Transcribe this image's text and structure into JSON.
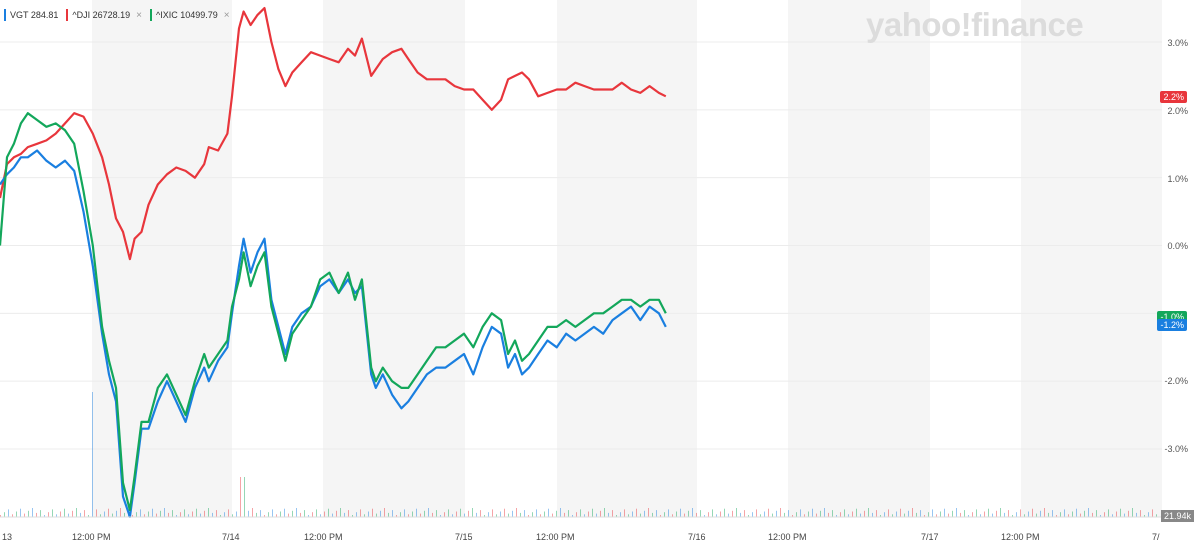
{
  "legend": [
    {
      "label": "VGT 284.81",
      "color": "#1a7fe0",
      "close": "×"
    },
    {
      "label": "^DJI 26728.19",
      "color": "#e8363c",
      "close": "×"
    },
    {
      "label": "^IXIC 10499.79",
      "color": "#13a75b",
      "close": "×"
    }
  ],
  "logo": "yahoo!finance",
  "badges": {
    "dji": "2.2%",
    "ixic": "-1.0%",
    "vgt": "-1.2%",
    "volume": "21.94k"
  },
  "chart_data": {
    "type": "line",
    "ylabel": "",
    "yticks": [
      "3.0%",
      "2.0%",
      "1.0%",
      "0.0%",
      "-1.0%",
      "-2.0%",
      "-3.0%"
    ],
    "ylim": [
      -4.0,
      3.6
    ],
    "xticks": [
      "13",
      "12:00 PM",
      "7/14",
      "12:00 PM",
      "7/15",
      "12:00 PM",
      "7/16",
      "12:00 PM",
      "7/17",
      "12:00 PM",
      "7/"
    ],
    "x_span_days": [
      13,
      18
    ],
    "series": [
      {
        "name": "^DJI",
        "color": "#e8363c",
        "points": [
          [
            13.0,
            0.7
          ],
          [
            13.03,
            1.2
          ],
          [
            13.06,
            1.3
          ],
          [
            13.09,
            1.35
          ],
          [
            13.12,
            1.45
          ],
          [
            13.16,
            1.5
          ],
          [
            13.2,
            1.55
          ],
          [
            13.24,
            1.65
          ],
          [
            13.28,
            1.8
          ],
          [
            13.32,
            1.95
          ],
          [
            13.36,
            1.9
          ],
          [
            13.4,
            1.65
          ],
          [
            13.44,
            1.3
          ],
          [
            13.47,
            0.9
          ],
          [
            13.5,
            0.4
          ],
          [
            13.53,
            0.2
          ],
          [
            13.56,
            -0.2
          ],
          [
            13.58,
            0.1
          ],
          [
            13.61,
            0.2
          ],
          [
            13.64,
            0.6
          ],
          [
            13.68,
            0.9
          ],
          [
            13.72,
            1.05
          ],
          [
            13.76,
            1.15
          ],
          [
            13.8,
            1.1
          ],
          [
            13.84,
            1.0
          ],
          [
            13.88,
            1.2
          ],
          [
            13.9,
            1.45
          ],
          [
            13.94,
            1.4
          ],
          [
            13.98,
            1.65
          ],
          [
            14.0,
            2.2
          ],
          [
            14.03,
            3.2
          ],
          [
            14.05,
            3.45
          ],
          [
            14.08,
            3.25
          ],
          [
            14.11,
            3.4
          ],
          [
            14.14,
            3.5
          ],
          [
            14.17,
            3.0
          ],
          [
            14.2,
            2.6
          ],
          [
            14.23,
            2.35
          ],
          [
            14.26,
            2.55
          ],
          [
            14.3,
            2.7
          ],
          [
            14.34,
            2.85
          ],
          [
            14.38,
            2.8
          ],
          [
            14.42,
            2.75
          ],
          [
            14.46,
            2.7
          ],
          [
            14.5,
            2.9
          ],
          [
            14.53,
            2.8
          ],
          [
            14.56,
            3.05
          ],
          [
            14.6,
            2.5
          ],
          [
            14.62,
            2.6
          ],
          [
            14.65,
            2.75
          ],
          [
            14.69,
            2.85
          ],
          [
            14.73,
            2.9
          ],
          [
            14.76,
            2.75
          ],
          [
            14.8,
            2.55
          ],
          [
            14.84,
            2.45
          ],
          [
            14.88,
            2.45
          ],
          [
            14.92,
            2.45
          ],
          [
            14.96,
            2.35
          ],
          [
            15.0,
            2.3
          ],
          [
            15.04,
            2.3
          ],
          [
            15.08,
            2.15
          ],
          [
            15.12,
            2.0
          ],
          [
            15.16,
            2.15
          ],
          [
            15.19,
            2.45
          ],
          [
            15.22,
            2.5
          ],
          [
            15.25,
            2.55
          ],
          [
            15.28,
            2.45
          ],
          [
            15.32,
            2.2
          ],
          [
            15.36,
            2.25
          ],
          [
            15.4,
            2.3
          ],
          [
            15.44,
            2.3
          ],
          [
            15.48,
            2.4
          ],
          [
            15.52,
            2.35
          ],
          [
            15.56,
            2.3
          ],
          [
            15.6,
            2.3
          ],
          [
            15.64,
            2.3
          ],
          [
            15.68,
            2.4
          ],
          [
            15.72,
            2.3
          ],
          [
            15.76,
            2.25
          ],
          [
            15.8,
            2.35
          ],
          [
            15.84,
            2.25
          ],
          [
            15.87,
            2.2
          ]
        ]
      },
      {
        "name": "VGT",
        "color": "#1a7fe0",
        "points": [
          [
            13.0,
            0.9
          ],
          [
            13.03,
            1.05
          ],
          [
            13.06,
            1.15
          ],
          [
            13.09,
            1.3
          ],
          [
            13.12,
            1.3
          ],
          [
            13.16,
            1.4
          ],
          [
            13.2,
            1.25
          ],
          [
            13.24,
            1.15
          ],
          [
            13.28,
            1.25
          ],
          [
            13.32,
            1.1
          ],
          [
            13.36,
            0.5
          ],
          [
            13.4,
            -0.3
          ],
          [
            13.44,
            -1.3
          ],
          [
            13.47,
            -1.9
          ],
          [
            13.5,
            -2.3
          ],
          [
            13.53,
            -3.7
          ],
          [
            13.56,
            -4.0
          ],
          [
            13.58,
            -3.5
          ],
          [
            13.61,
            -2.7
          ],
          [
            13.64,
            -2.7
          ],
          [
            13.68,
            -2.3
          ],
          [
            13.72,
            -2.0
          ],
          [
            13.76,
            -2.3
          ],
          [
            13.8,
            -2.6
          ],
          [
            13.84,
            -2.1
          ],
          [
            13.88,
            -1.8
          ],
          [
            13.9,
            -2.0
          ],
          [
            13.94,
            -1.7
          ],
          [
            13.98,
            -1.5
          ],
          [
            14.0,
            -1.0
          ],
          [
            14.03,
            -0.3
          ],
          [
            14.05,
            0.1
          ],
          [
            14.08,
            -0.4
          ],
          [
            14.11,
            -0.1
          ],
          [
            14.14,
            0.1
          ],
          [
            14.17,
            -0.8
          ],
          [
            14.2,
            -1.2
          ],
          [
            14.23,
            -1.6
          ],
          [
            14.26,
            -1.2
          ],
          [
            14.3,
            -1.0
          ],
          [
            14.34,
            -0.9
          ],
          [
            14.38,
            -0.6
          ],
          [
            14.42,
            -0.5
          ],
          [
            14.46,
            -0.7
          ],
          [
            14.5,
            -0.5
          ],
          [
            14.53,
            -0.7
          ],
          [
            14.56,
            -0.6
          ],
          [
            14.6,
            -1.9
          ],
          [
            14.62,
            -2.1
          ],
          [
            14.65,
            -1.9
          ],
          [
            14.69,
            -2.2
          ],
          [
            14.73,
            -2.4
          ],
          [
            14.76,
            -2.3
          ],
          [
            14.8,
            -2.1
          ],
          [
            14.84,
            -1.9
          ],
          [
            14.88,
            -1.8
          ],
          [
            14.92,
            -1.8
          ],
          [
            14.96,
            -1.7
          ],
          [
            15.0,
            -1.6
          ],
          [
            15.04,
            -1.9
          ],
          [
            15.08,
            -1.5
          ],
          [
            15.12,
            -1.2
          ],
          [
            15.16,
            -1.3
          ],
          [
            15.19,
            -1.8
          ],
          [
            15.22,
            -1.6
          ],
          [
            15.25,
            -1.9
          ],
          [
            15.28,
            -1.8
          ],
          [
            15.32,
            -1.6
          ],
          [
            15.36,
            -1.4
          ],
          [
            15.4,
            -1.5
          ],
          [
            15.44,
            -1.3
          ],
          [
            15.48,
            -1.4
          ],
          [
            15.52,
            -1.3
          ],
          [
            15.56,
            -1.2
          ],
          [
            15.6,
            -1.3
          ],
          [
            15.64,
            -1.1
          ],
          [
            15.68,
            -1.0
          ],
          [
            15.72,
            -0.9
          ],
          [
            15.76,
            -1.1
          ],
          [
            15.8,
            -0.9
          ],
          [
            15.84,
            -1.0
          ],
          [
            15.87,
            -1.2
          ]
        ]
      },
      {
        "name": "^IXIC",
        "color": "#13a75b",
        "points": [
          [
            13.0,
            0.0
          ],
          [
            13.03,
            1.3
          ],
          [
            13.06,
            1.5
          ],
          [
            13.09,
            1.8
          ],
          [
            13.12,
            1.95
          ],
          [
            13.16,
            1.85
          ],
          [
            13.2,
            1.75
          ],
          [
            13.24,
            1.8
          ],
          [
            13.28,
            1.7
          ],
          [
            13.32,
            1.5
          ],
          [
            13.36,
            0.8
          ],
          [
            13.4,
            0.0
          ],
          [
            13.44,
            -1.2
          ],
          [
            13.47,
            -1.7
          ],
          [
            13.5,
            -2.1
          ],
          [
            13.53,
            -3.5
          ],
          [
            13.56,
            -3.9
          ],
          [
            13.58,
            -3.4
          ],
          [
            13.61,
            -2.6
          ],
          [
            13.64,
            -2.6
          ],
          [
            13.68,
            -2.1
          ],
          [
            13.72,
            -1.9
          ],
          [
            13.76,
            -2.2
          ],
          [
            13.8,
            -2.5
          ],
          [
            13.84,
            -2.0
          ],
          [
            13.88,
            -1.6
          ],
          [
            13.9,
            -1.8
          ],
          [
            13.94,
            -1.6
          ],
          [
            13.98,
            -1.4
          ],
          [
            14.0,
            -0.9
          ],
          [
            14.03,
            -0.5
          ],
          [
            14.05,
            -0.1
          ],
          [
            14.08,
            -0.6
          ],
          [
            14.11,
            -0.3
          ],
          [
            14.14,
            -0.1
          ],
          [
            14.17,
            -0.9
          ],
          [
            14.2,
            -1.3
          ],
          [
            14.23,
            -1.7
          ],
          [
            14.26,
            -1.3
          ],
          [
            14.3,
            -1.1
          ],
          [
            14.34,
            -0.9
          ],
          [
            14.38,
            -0.5
          ],
          [
            14.42,
            -0.4
          ],
          [
            14.46,
            -0.7
          ],
          [
            14.5,
            -0.4
          ],
          [
            14.53,
            -0.8
          ],
          [
            14.56,
            -0.5
          ],
          [
            14.6,
            -1.8
          ],
          [
            14.62,
            -2.0
          ],
          [
            14.65,
            -1.8
          ],
          [
            14.69,
            -2.0
          ],
          [
            14.73,
            -2.1
          ],
          [
            14.76,
            -2.1
          ],
          [
            14.8,
            -1.9
          ],
          [
            14.84,
            -1.7
          ],
          [
            14.88,
            -1.5
          ],
          [
            14.92,
            -1.5
          ],
          [
            14.96,
            -1.4
          ],
          [
            15.0,
            -1.3
          ],
          [
            15.04,
            -1.5
          ],
          [
            15.08,
            -1.2
          ],
          [
            15.12,
            -1.0
          ],
          [
            15.16,
            -1.1
          ],
          [
            15.19,
            -1.6
          ],
          [
            15.22,
            -1.4
          ],
          [
            15.25,
            -1.7
          ],
          [
            15.28,
            -1.6
          ],
          [
            15.32,
            -1.4
          ],
          [
            15.36,
            -1.2
          ],
          [
            15.4,
            -1.2
          ],
          [
            15.44,
            -1.1
          ],
          [
            15.48,
            -1.2
          ],
          [
            15.52,
            -1.1
          ],
          [
            15.56,
            -1.0
          ],
          [
            15.6,
            -1.0
          ],
          [
            15.64,
            -0.9
          ],
          [
            15.68,
            -0.8
          ],
          [
            15.72,
            -0.8
          ],
          [
            15.76,
            -0.9
          ],
          [
            15.8,
            -0.8
          ],
          [
            15.84,
            -0.8
          ],
          [
            15.87,
            -1.0
          ]
        ]
      }
    ],
    "volume_bar_max": 21.94
  }
}
